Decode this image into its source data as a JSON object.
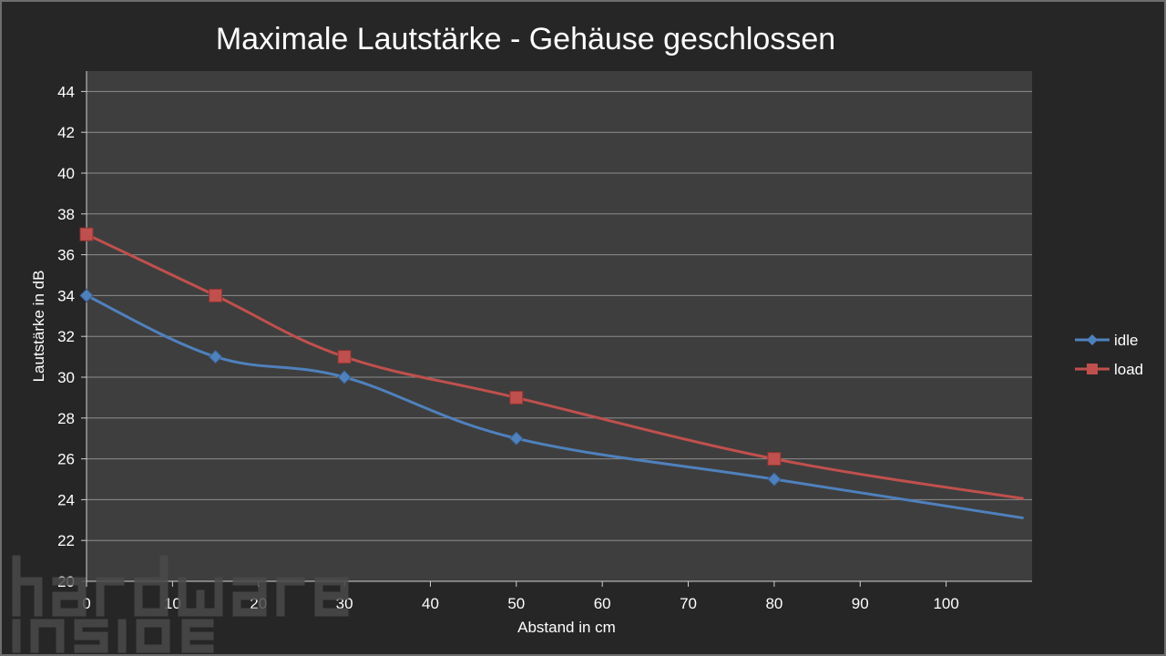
{
  "chart_data": {
    "type": "line",
    "title": "Maximale Lautstärke - Gehäuse geschlossen",
    "xlabel": "Abstand in cm",
    "ylabel": "Lautstärke in dB",
    "x_ticks": [
      "0",
      "10",
      "20",
      "30",
      "40",
      "50",
      "60",
      "70",
      "80",
      "90",
      "100"
    ],
    "y_ticks": [
      "20",
      "22",
      "24",
      "26",
      "28",
      "30",
      "32",
      "34",
      "36",
      "38",
      "40",
      "42",
      "44"
    ],
    "xlim": [
      0,
      110
    ],
    "ylim": [
      20,
      45
    ],
    "grid": true,
    "legend_position": "right",
    "series": [
      {
        "name": "idle",
        "color": "#4f81bd",
        "marker": "diamond",
        "points": [
          [
            0,
            34
          ],
          [
            15,
            31
          ],
          [
            30,
            30
          ],
          [
            50,
            27
          ],
          [
            80,
            25
          ]
        ],
        "line_end": [
          109,
          23.1
        ]
      },
      {
        "name": "load",
        "color": "#c0504d",
        "marker": "square",
        "points": [
          [
            0,
            37
          ],
          [
            15,
            34
          ],
          [
            30,
            31
          ],
          [
            50,
            29
          ],
          [
            80,
            26
          ]
        ],
        "line_end": [
          109,
          24.05
        ]
      }
    ]
  },
  "watermark": {
    "line1": "hardware",
    "line2": "inside"
  }
}
